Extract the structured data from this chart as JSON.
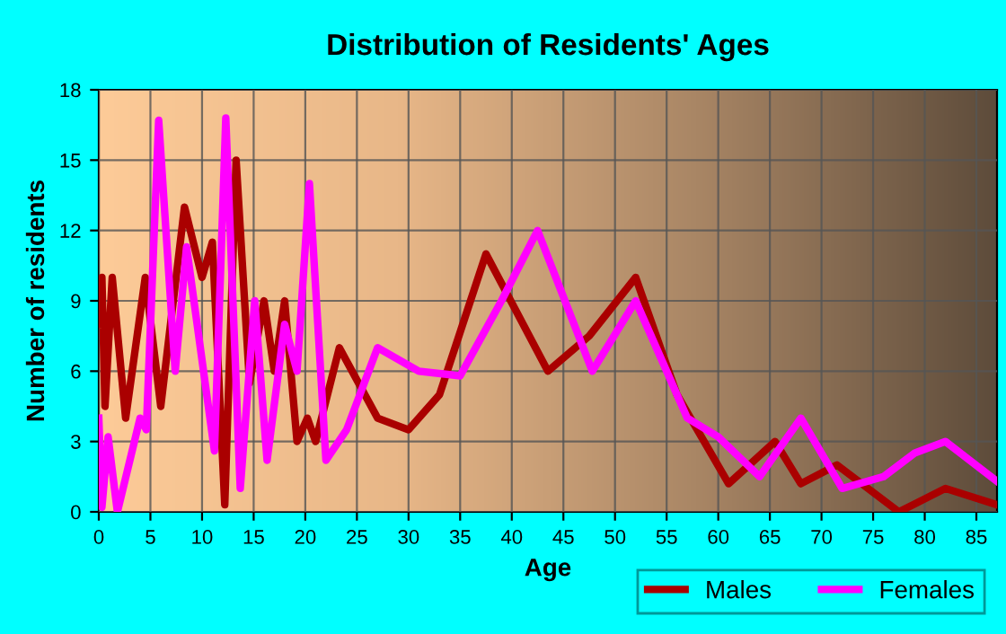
{
  "chart_data": {
    "type": "line",
    "title": "Distribution of Residents' Ages",
    "xlabel": "Age",
    "ylabel": "Number of residents",
    "xlim": [
      0,
      87
    ],
    "xticks": [
      0,
      5,
      10,
      15,
      20,
      25,
      30,
      35,
      40,
      45,
      50,
      55,
      60,
      65,
      70,
      75,
      80,
      85
    ],
    "ylim": [
      0,
      18
    ],
    "yticks": [
      0,
      3,
      6,
      9,
      12,
      15,
      18
    ],
    "grid": true,
    "legend": "bottom right",
    "series": [
      {
        "name": "Males",
        "color": "#aa0000",
        "x": [
          0,
          0.3,
          0.6,
          1.3,
          2.6,
          4.5,
          6,
          8.3,
          10,
          11,
          12.2,
          13.3,
          14.6,
          16,
          17,
          18,
          19.2,
          20.2,
          21,
          23.3,
          27,
          30,
          33,
          37.5,
          43.5,
          47.5,
          52,
          56,
          61,
          65.5,
          68,
          71.5,
          77.5,
          82,
          87
        ],
        "values": [
          8,
          10,
          4.5,
          10,
          4,
          10,
          4.5,
          13,
          10,
          11.5,
          0.3,
          15,
          5.5,
          9,
          6,
          9,
          3,
          4,
          3,
          7,
          4,
          3.5,
          5,
          11,
          6,
          7.5,
          10,
          5,
          1.2,
          3,
          1.2,
          2,
          0,
          1,
          0.3
        ]
      },
      {
        "name": "Females",
        "color": "#ff00ff",
        "x": [
          0,
          0.3,
          0.9,
          1.8,
          4,
          4.6,
          5.8,
          7.4,
          8.5,
          11.2,
          12.3,
          13.7,
          15.1,
          16.3,
          18,
          19.2,
          20.4,
          22,
          24,
          27,
          31,
          35,
          39,
          42.5,
          47.8,
          52,
          57,
          60,
          64,
          68,
          72,
          76,
          79,
          82,
          87
        ],
        "values": [
          4,
          0.2,
          3.2,
          0,
          4,
          3.5,
          16.7,
          6,
          11.3,
          2.6,
          16.8,
          1,
          9,
          2.2,
          8,
          6,
          14,
          2.2,
          3.5,
          7,
          6,
          5.8,
          9,
          12,
          6,
          9,
          4,
          3.2,
          1.5,
          4,
          1,
          1.5,
          2.5,
          3,
          1.3
        ]
      }
    ]
  }
}
